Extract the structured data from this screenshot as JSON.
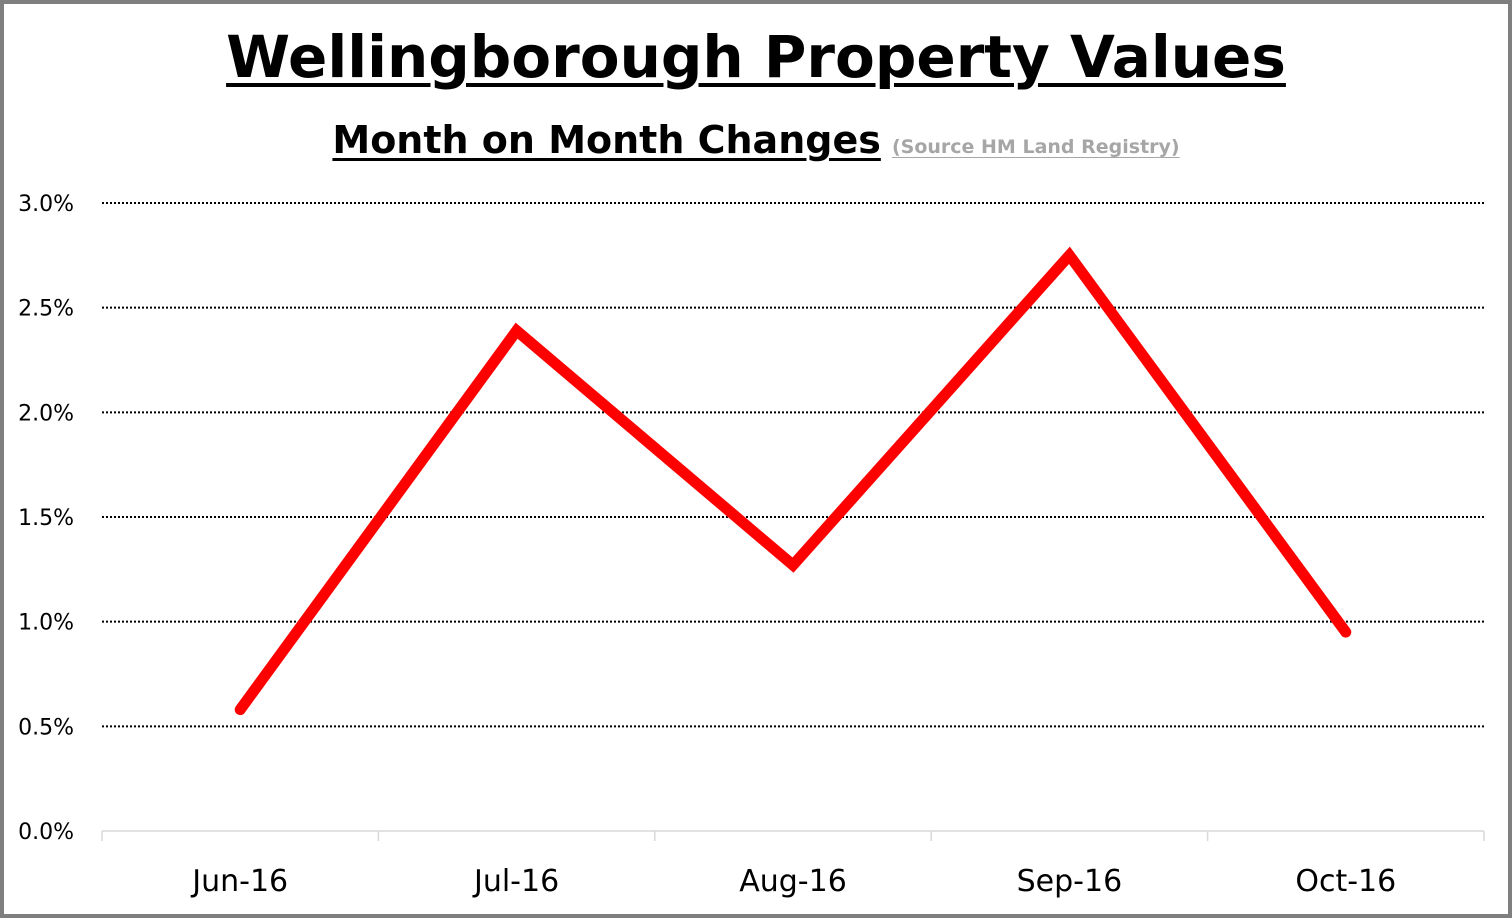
{
  "chart_data": {
    "type": "line",
    "title": "Wellingborough Property Values",
    "subtitle": "Month on Month Changes",
    "source_note": "(Source HM Land Registry)",
    "categories": [
      "Jun-16",
      "Jul-16",
      "Aug-16",
      "Sep-16",
      "Oct-16"
    ],
    "series": [
      {
        "values": [
          0.58,
          2.39,
          1.27,
          2.75,
          0.95
        ],
        "color": "#ff0000"
      }
    ],
    "yticks": [
      "0.0%",
      "0.5%",
      "1.0%",
      "1.5%",
      "2.0%",
      "2.5%",
      "3.0%"
    ],
    "ylim": [
      0,
      3.0
    ],
    "ytick_step": 0.5,
    "grid": true,
    "xlabel": "",
    "ylabel": ""
  }
}
